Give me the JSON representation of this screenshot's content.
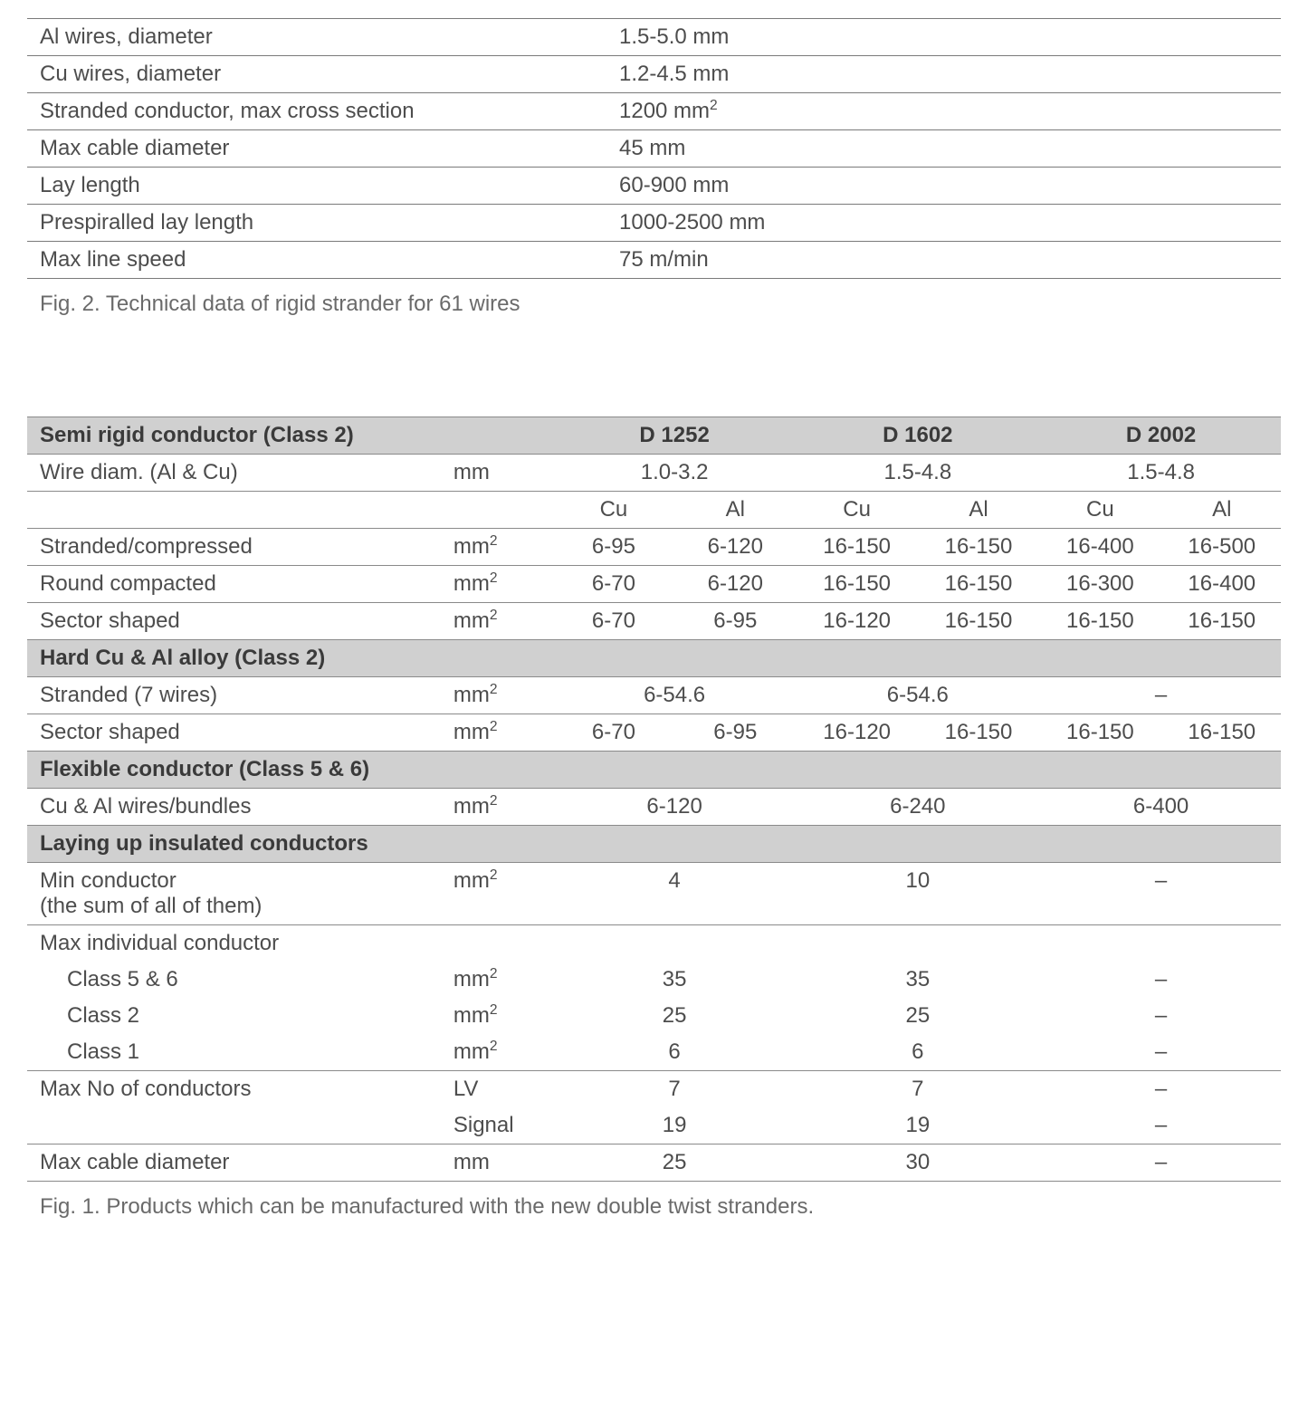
{
  "table1": {
    "rows": [
      {
        "label": "Al wires, diameter",
        "value": "1.5-5.0 mm"
      },
      {
        "label": "Cu wires, diameter",
        "value": "1.2-4.5 mm"
      },
      {
        "label": "Stranded conductor, max cross section",
        "value": "1200 mm",
        "sup": "2"
      },
      {
        "label": "Max cable diameter",
        "value": "45 mm"
      },
      {
        "label": "Lay length",
        "value": "60-900 mm"
      },
      {
        "label": "Prespiralled lay length",
        "value": "1000-2500 mm"
      },
      {
        "label": "Max line speed",
        "value": "75 m/min"
      }
    ],
    "caption": "Fig. 2. Technical data of rigid strander for 61 wires"
  },
  "table2": {
    "header": {
      "title": "Semi rigid conductor (Class 2)",
      "cols": [
        "D 1252",
        "D 1602",
        "D 2002"
      ]
    },
    "wire_diam": {
      "label": "Wire diam. (Al & Cu)",
      "unit": "mm",
      "vals": [
        "1.0-3.2",
        "1.5-4.8",
        "1.5-4.8"
      ]
    },
    "sub": {
      "a": "Cu",
      "b": "Al"
    },
    "semi_rows": [
      {
        "label": "Stranded/compressed",
        "unit": "mm",
        "sup": "2",
        "v": [
          "6-95",
          "6-120",
          "16-150",
          "16-150",
          "16-400",
          "16-500"
        ]
      },
      {
        "label": "Round compacted",
        "unit": "mm",
        "sup": "2",
        "v": [
          "6-70",
          "6-120",
          "16-150",
          "16-150",
          "16-300",
          "16-400"
        ]
      },
      {
        "label": "Sector shaped",
        "unit": "mm",
        "sup": "2",
        "v": [
          "6-70",
          "6-95",
          "16-120",
          "16-150",
          "16-150",
          "16-150"
        ]
      }
    ],
    "hard": {
      "title": "Hard Cu & Al alloy (Class 2)"
    },
    "hard_rows": [
      {
        "label": "Stranded (7 wires)",
        "unit": "mm",
        "sup": "2",
        "span": true,
        "v": [
          "6-54.6",
          "6-54.6",
          "–"
        ]
      },
      {
        "label": "Sector shaped",
        "unit": "mm",
        "sup": "2",
        "span": false,
        "v": [
          "6-70",
          "6-95",
          "16-120",
          "16-150",
          "16-150",
          "16-150"
        ]
      }
    ],
    "flex": {
      "title": "Flexible conductor (Class 5 & 6)",
      "row": {
        "label": "Cu & Al wires/bundles",
        "unit": "mm",
        "sup": "2",
        "v": [
          "6-120",
          "6-240",
          "6-400"
        ]
      }
    },
    "lay": {
      "title": "Laying up insulated conductors"
    },
    "lay_rows": {
      "min": {
        "label1": "Min conductor",
        "label2": "(the sum of all of them)",
        "unit": "mm",
        "sup": "2",
        "v": [
          "4",
          "10",
          "–"
        ]
      },
      "max_head": "Max individual conductor",
      "max_56": {
        "label": "Class 5 & 6",
        "unit": "mm",
        "sup": "2",
        "v": [
          "35",
          "35",
          "–"
        ]
      },
      "max_2": {
        "label": "Class 2",
        "unit": "mm",
        "sup": "2",
        "v": [
          "25",
          "25",
          "–"
        ]
      },
      "max_1": {
        "label": "Class 1",
        "unit": "mm",
        "sup": "2",
        "v": [
          "6",
          "6",
          "–"
        ]
      },
      "maxno1": {
        "label": "Max No of conductors",
        "unit": "LV",
        "v": [
          "7",
          "7",
          "–"
        ]
      },
      "maxno2": {
        "label": "",
        "unit": "Signal",
        "v": [
          "19",
          "19",
          "–"
        ]
      },
      "maxdia": {
        "label": "Max cable diameter",
        "unit": "mm",
        "v": [
          "25",
          "30",
          "–"
        ]
      }
    },
    "caption": "Fig. 1. Products which can be manufactured with the new double twist stranders."
  }
}
